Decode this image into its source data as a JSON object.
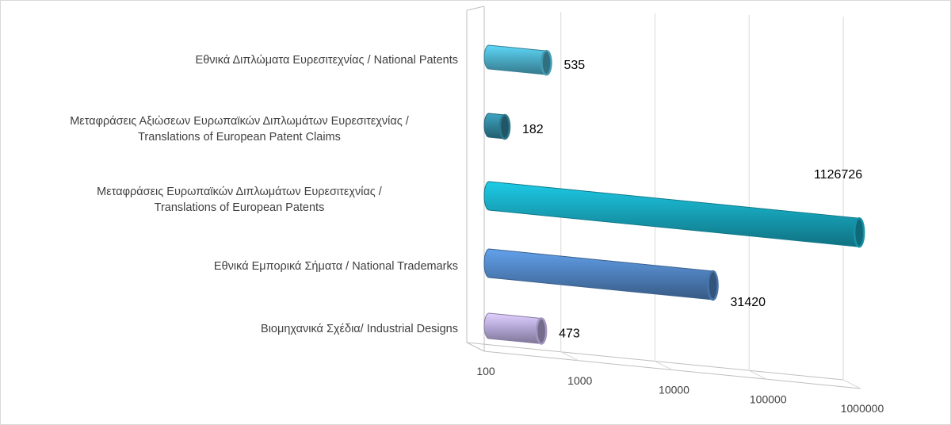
{
  "chart_data": {
    "type": "bar",
    "orientation": "horizontal",
    "style": "3d-cylinder",
    "x_scale": "log",
    "xlim": [
      100,
      1000000
    ],
    "grid": true,
    "categories": [
      [
        "Εθνικά Διπλώματα Ευρεσιτεχνίας / National Patents"
      ],
      [
        "Μεταφράσεις Αξιώσεων Ευρωπαϊκών Διπλωμάτων Ευρεσιτεχνίας /",
        "Translations of European Patent Claims"
      ],
      [
        "Μεταφράσεις Ευρωπαϊκών Διπλωμάτων Ευρεσιτεχνίας /",
        "Translations of European Patents"
      ],
      [
        "Εθνικά Εμπορικά Σήματα / National Trademarks"
      ],
      [
        "Βιομηχανικά Σχέδια/ Industrial Designs"
      ]
    ],
    "values": [
      535,
      182,
      1126726,
      31420,
      473
    ],
    "data_labels": [
      "535",
      "182",
      "1126726",
      "31420",
      "473"
    ],
    "colors": [
      "#4bacc6",
      "#31849b",
      "#17a2b8",
      "#4f81bd",
      "#b4a7d6"
    ],
    "x_ticks": [
      100,
      1000,
      10000,
      100000,
      1000000
    ],
    "x_tick_labels": [
      "100",
      "1000",
      "10000",
      "100000",
      "1000000"
    ]
  }
}
